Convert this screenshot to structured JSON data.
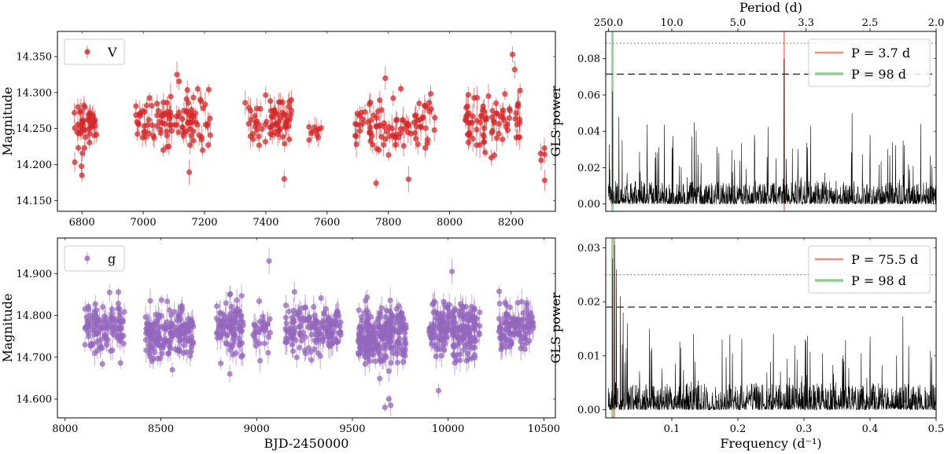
{
  "chart_data": [
    {
      "id": "v_lc",
      "type": "scatter",
      "ylabel": "Magnitude",
      "xlim": [
        6720,
        8345
      ],
      "ylim": [
        14.135,
        14.385
      ],
      "invert_y": false,
      "xticks": [
        6800,
        7000,
        7200,
        7400,
        7600,
        7800,
        8000,
        8200
      ],
      "yticks": [
        14.15,
        14.2,
        14.25,
        14.3,
        14.35
      ],
      "ytick_labels": [
        "14.150",
        "14.200",
        "14.250",
        "14.300",
        "14.350"
      ],
      "legend": "V",
      "color": "#d62728",
      "seasons": [
        {
          "x0": 6775,
          "x1": 6850,
          "mean": 14.255,
          "sd": 0.025,
          "n": 45
        },
        {
          "x0": 6975,
          "x1": 7220,
          "mean": 14.262,
          "sd": 0.024,
          "n": 110
        },
        {
          "x0": 7330,
          "x1": 7485,
          "mean": 14.262,
          "sd": 0.023,
          "n": 70
        },
        {
          "x0": 7535,
          "x1": 7585,
          "mean": 14.247,
          "sd": 0.018,
          "n": 10
        },
        {
          "x0": 7690,
          "x1": 7955,
          "mean": 14.255,
          "sd": 0.024,
          "n": 95
        },
        {
          "x0": 8050,
          "x1": 8230,
          "mean": 14.262,
          "sd": 0.026,
          "n": 80
        },
        {
          "x0": 8295,
          "x1": 8315,
          "mean": 14.205,
          "sd": 0.025,
          "n": 4
        }
      ],
      "notable_points": [
        [
          6800,
          14.185
        ],
        [
          7110,
          14.325
        ],
        [
          7460,
          14.18
        ],
        [
          7760,
          14.174
        ],
        [
          7790,
          14.32
        ],
        [
          8205,
          14.353
        ],
        [
          8212,
          14.332
        ],
        [
          8310,
          14.178
        ]
      ]
    },
    {
      "id": "v_gls",
      "type": "line",
      "ylabel": "GLS power",
      "xlim": [
        0.0,
        0.5
      ],
      "ylim": [
        -0.004,
        0.095
      ],
      "yticks": [
        0.0,
        0.02,
        0.04,
        0.06,
        0.08
      ],
      "ytick_labels": [
        "0.00",
        "0.02",
        "0.04",
        "0.06",
        "0.08"
      ],
      "top_axis_label": "Period (d)",
      "top_ticks": [
        250.0,
        10.0,
        5.0,
        3.3,
        2.5,
        2.0
      ],
      "top_tick_labels": [
        "250.0",
        "10.0",
        "5.0",
        "3.3",
        "2.5",
        "2.0"
      ],
      "fap_levels": [
        0.0885,
        0.0715
      ],
      "peaks": [
        [
          0.27,
          0.08
        ],
        [
          0.0102,
          0.062
        ],
        [
          0.02,
          0.048
        ],
        [
          0.373,
          0.05
        ],
        [
          0.31,
          0.043
        ],
        [
          0.025,
          0.035
        ],
        [
          0.134,
          0.045
        ],
        [
          0.225,
          0.038
        ],
        [
          0.4,
          0.038
        ],
        [
          0.45,
          0.035
        ]
      ],
      "noise_level": 0.009,
      "markers": [
        {
          "freq": 0.27,
          "color": "#f28b82",
          "label": "P = 3.7 d"
        },
        {
          "freq": 0.0102,
          "color": "#8fcf8f",
          "label": "P = 98 d"
        }
      ]
    },
    {
      "id": "g_lc",
      "type": "scatter",
      "ylabel": "Magnitude",
      "xlabel": "BJD-2450000",
      "xlim": [
        7960,
        10560
      ],
      "ylim": [
        14.555,
        14.985
      ],
      "xticks": [
        8000,
        8500,
        9000,
        9500,
        10000,
        10500
      ],
      "yticks": [
        14.6,
        14.7,
        14.8,
        14.9
      ],
      "ytick_labels": [
        "14.600",
        "14.700",
        "14.800",
        "14.900"
      ],
      "legend": "g",
      "color": "#9467bd",
      "seasons": [
        {
          "x0": 8100,
          "x1": 8310,
          "mean": 14.775,
          "sd": 0.04,
          "n": 110
        },
        {
          "x0": 8420,
          "x1": 8670,
          "mean": 14.76,
          "sd": 0.04,
          "n": 170
        },
        {
          "x0": 8790,
          "x1": 8930,
          "mean": 14.775,
          "sd": 0.04,
          "n": 90
        },
        {
          "x0": 8980,
          "x1": 9075,
          "mean": 14.765,
          "sd": 0.035,
          "n": 30
        },
        {
          "x0": 9150,
          "x1": 9440,
          "mean": 14.77,
          "sd": 0.04,
          "n": 150
        },
        {
          "x0": 9530,
          "x1": 9780,
          "mean": 14.755,
          "sd": 0.045,
          "n": 230
        },
        {
          "x0": 9900,
          "x1": 10165,
          "mean": 14.765,
          "sd": 0.045,
          "n": 200
        },
        {
          "x0": 10265,
          "x1": 10445,
          "mean": 14.77,
          "sd": 0.04,
          "n": 110
        }
      ],
      "notable_points": [
        [
          9065,
          14.93
        ],
        [
          10020,
          14.905
        ],
        [
          9670,
          14.58
        ],
        [
          9700,
          14.585
        ],
        [
          9690,
          14.6
        ],
        [
          8860,
          14.66
        ],
        [
          8560,
          14.67
        ],
        [
          9950,
          14.62
        ]
      ]
    },
    {
      "id": "g_gls",
      "type": "line",
      "ylabel": "GLS power",
      "xlabel": "Frequency (d⁻¹)",
      "xlim": [
        0.0,
        0.5
      ],
      "ylim": [
        -0.0015,
        0.0318
      ],
      "xticks": [
        0.1,
        0.2,
        0.3,
        0.4,
        0.5
      ],
      "xtick_labels": [
        "0.1",
        "0.2",
        "0.3",
        "0.4",
        "0.5"
      ],
      "yticks": [
        0.0,
        0.01,
        0.02,
        0.03
      ],
      "ytick_labels": [
        "0.00",
        "0.01",
        "0.02",
        "0.03"
      ],
      "fap_levels": [
        0.025,
        0.019
      ],
      "peaks": [
        [
          0.0132,
          0.0305
        ],
        [
          0.0102,
          0.028
        ],
        [
          0.016,
          0.026
        ],
        [
          0.022,
          0.021
        ],
        [
          0.0265,
          0.018
        ],
        [
          0.033,
          0.016
        ],
        [
          0.066,
          0.015
        ],
        [
          0.133,
          0.014
        ],
        [
          0.176,
          0.013
        ],
        [
          0.4,
          0.0135
        ],
        [
          0.44,
          0.01
        ]
      ],
      "noise_level": 0.0035,
      "markers": [
        {
          "freq": 0.0132,
          "color": "#f28b82",
          "label": "P = 75.5 d"
        },
        {
          "freq": 0.0102,
          "color": "#8fcf8f",
          "label": "P = 98 d"
        }
      ]
    }
  ]
}
